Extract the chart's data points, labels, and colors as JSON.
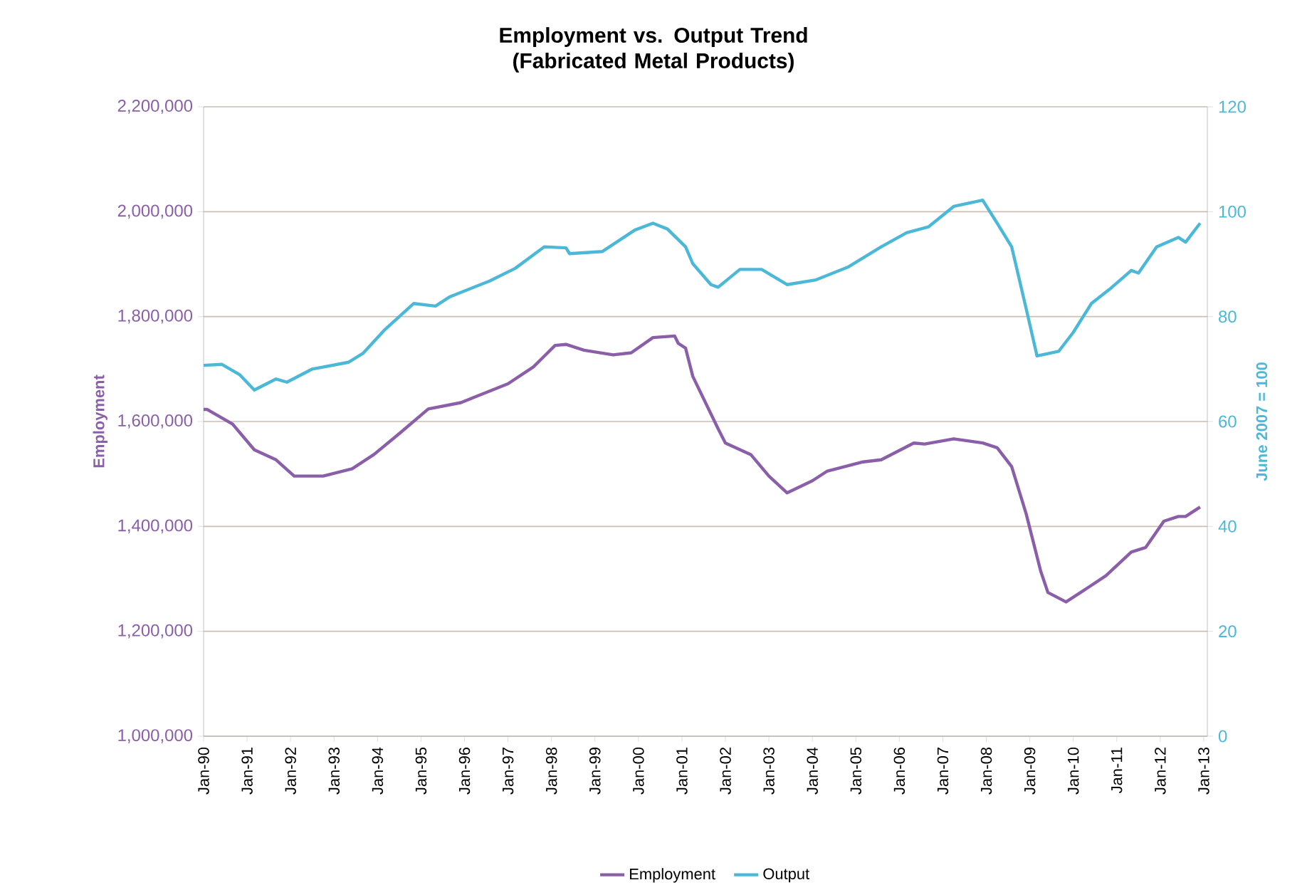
{
  "chart_data": {
    "type": "line",
    "title": "Employment vs. Output Trend\n(Fabricated Metal Products)",
    "ylabel": "Employment",
    "y2label": "June 2007 = 100",
    "grid": "y",
    "legend": "bottom",
    "xlim": [
      "1990-01",
      "2013-02"
    ],
    "xticks": [
      {
        "value": "1990-01",
        "label": "Jan-90"
      },
      {
        "value": "1991-01",
        "label": "Jan-91"
      },
      {
        "value": "1992-01",
        "label": "Jan-92"
      },
      {
        "value": "1993-01",
        "label": "Jan-93"
      },
      {
        "value": "1994-01",
        "label": "Jan-94"
      },
      {
        "value": "1995-01",
        "label": "Jan-95"
      },
      {
        "value": "1996-01",
        "label": "Jan-96"
      },
      {
        "value": "1997-01",
        "label": "Jan-97"
      },
      {
        "value": "1998-01",
        "label": "Jan-98"
      },
      {
        "value": "1999-01",
        "label": "Jan-99"
      },
      {
        "value": "2000-01",
        "label": "Jan-00"
      },
      {
        "value": "2001-01",
        "label": "Jan-01"
      },
      {
        "value": "2002-01",
        "label": "Jan-02"
      },
      {
        "value": "2003-01",
        "label": "Jan-03"
      },
      {
        "value": "2004-01",
        "label": "Jan-04"
      },
      {
        "value": "2005-01",
        "label": "Jan-05"
      },
      {
        "value": "2006-01",
        "label": "Jan-06"
      },
      {
        "value": "2007-01",
        "label": "Jan-07"
      },
      {
        "value": "2008-01",
        "label": "Jan-08"
      },
      {
        "value": "2009-01",
        "label": "Jan-09"
      },
      {
        "value": "2010-01",
        "label": "Jan-10"
      },
      {
        "value": "2011-01",
        "label": "Jan-11"
      },
      {
        "value": "2012-01",
        "label": "Jan-12"
      },
      {
        "value": "2013-01",
        "label": "Jan-13"
      }
    ],
    "ylim": [
      1000000,
      2200000
    ],
    "yticks": [
      {
        "value": 1000000,
        "label": "1,000,000"
      },
      {
        "value": 1200000,
        "label": "1,200,000"
      },
      {
        "value": 1400000,
        "label": "1,400,000"
      },
      {
        "value": 1600000,
        "label": "1,600,000"
      },
      {
        "value": 1800000,
        "label": "1,800,000"
      },
      {
        "value": 2000000,
        "label": "2,000,000"
      },
      {
        "value": 2200000,
        "label": "2,200,000"
      }
    ],
    "y2lim": [
      0,
      120
    ],
    "y2ticks": [
      0,
      20,
      40,
      60,
      80,
      100,
      120
    ],
    "series": [
      {
        "name": "Employment",
        "color": "#8a5ea8",
        "x": [
          "1990-01",
          "1990-02",
          "1990-09",
          "1991-03",
          "1991-09",
          "1992-02",
          "1992-10",
          "1993-06",
          "1993-12",
          "1994-07",
          "1995-03",
          "1995-12",
          "1996-05",
          "1997-01",
          "1997-08",
          "1998-02",
          "1998-05",
          "1998-10",
          "1999-06",
          "1999-11",
          "2000-05",
          "2000-11",
          "2000-12",
          "2001-02",
          "2001-04",
          "2001-11",
          "2002-01",
          "2002-08",
          "2003-01",
          "2003-06",
          "2004-01",
          "2004-05",
          "2005-03",
          "2005-08",
          "2006-05",
          "2006-08",
          "2007-04",
          "2007-12",
          "2008-04",
          "2008-08",
          "2008-12",
          "2009-04",
          "2009-06",
          "2009-11",
          "2010-05",
          "2010-10",
          "2011-05",
          "2011-09",
          "2012-02",
          "2012-06",
          "2012-08",
          "2012-12"
        ],
        "values": [
          1623000,
          1623000,
          1595000,
          1546000,
          1527000,
          1496000,
          1496000,
          1510000,
          1537000,
          1577000,
          1624000,
          1636000,
          1650000,
          1672000,
          1704000,
          1745000,
          1747000,
          1736000,
          1727000,
          1731000,
          1760000,
          1763000,
          1749000,
          1740000,
          1686000,
          1586000,
          1559000,
          1537000,
          1496000,
          1464000,
          1487000,
          1505000,
          1523000,
          1527000,
          1559000,
          1557000,
          1567000,
          1559000,
          1550000,
          1514000,
          1424000,
          1315000,
          1274000,
          1256000,
          1283000,
          1306000,
          1351000,
          1360000,
          1410000,
          1419000,
          1419000,
          1437000
        ]
      },
      {
        "name": "Output",
        "color": "#4bb8d8",
        "axis": "y2",
        "x": [
          "1990-01",
          "1990-06",
          "1990-11",
          "1991-03",
          "1991-09",
          "1991-12",
          "1992-07",
          "1993-05",
          "1993-09",
          "1994-03",
          "1994-11",
          "1995-05",
          "1995-09",
          "1996-08",
          "1997-03",
          "1997-11",
          "1998-05",
          "1998-06",
          "1999-03",
          "1999-12",
          "2000-05",
          "2000-09",
          "2001-02",
          "2001-04",
          "2001-09",
          "2001-11",
          "2002-05",
          "2002-11",
          "2003-06",
          "2004-02",
          "2004-11",
          "2005-08",
          "2006-03",
          "2006-09",
          "2007-04",
          "2007-12",
          "2008-04",
          "2008-08",
          "2008-12",
          "2009-03",
          "2009-09",
          "2010-01",
          "2010-06",
          "2010-11",
          "2011-05",
          "2011-07",
          "2011-12",
          "2012-06",
          "2012-08",
          "2012-12"
        ],
        "values": [
          70.7,
          70.9,
          68.9,
          66.0,
          68.1,
          67.5,
          70.0,
          71.3,
          73.0,
          77.5,
          82.5,
          82.0,
          83.8,
          86.8,
          89.2,
          93.3,
          93.1,
          92.0,
          92.4,
          96.5,
          97.8,
          96.7,
          93.3,
          90.1,
          86.1,
          85.6,
          89.0,
          89.0,
          86.1,
          87.0,
          89.5,
          93.3,
          96.0,
          97.1,
          101.0,
          102.2,
          97.8,
          93.3,
          81.5,
          72.5,
          73.4,
          77.0,
          82.5,
          85.2,
          88.8,
          88.3,
          93.3,
          95.1,
          94.2,
          97.8
        ]
      }
    ]
  }
}
